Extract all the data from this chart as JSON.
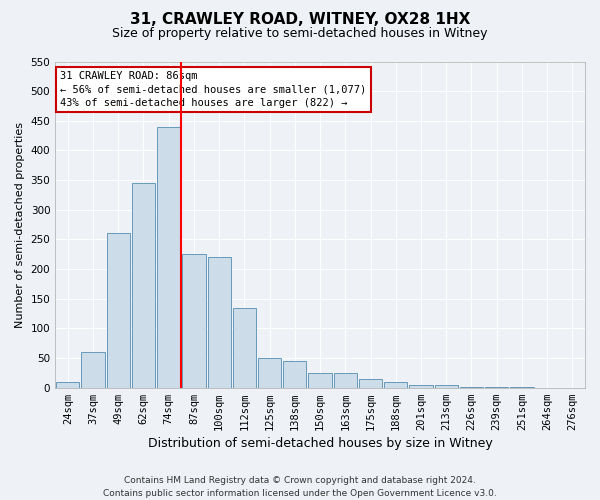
{
  "title": "31, CRAWLEY ROAD, WITNEY, OX28 1HX",
  "subtitle": "Size of property relative to semi-detached houses in Witney",
  "xlabel": "Distribution of semi-detached houses by size in Witney",
  "ylabel": "Number of semi-detached properties",
  "categories": [
    "24sqm",
    "37sqm",
    "49sqm",
    "62sqm",
    "74sqm",
    "87sqm",
    "100sqm",
    "112sqm",
    "125sqm",
    "138sqm",
    "150sqm",
    "163sqm",
    "175sqm",
    "188sqm",
    "201sqm",
    "213sqm",
    "226sqm",
    "239sqm",
    "251sqm",
    "264sqm",
    "276sqm"
  ],
  "values": [
    10,
    60,
    260,
    345,
    440,
    225,
    220,
    135,
    50,
    45,
    25,
    25,
    15,
    10,
    5,
    5,
    2,
    1,
    1,
    0,
    0
  ],
  "bar_color": "#ccdce8",
  "bar_edge_color": "#6699bb",
  "red_line_index": 5,
  "annotation_text": "31 CRAWLEY ROAD: 86sqm\n← 56% of semi-detached houses are smaller (1,077)\n43% of semi-detached houses are larger (822) →",
  "annotation_box_color": "#ffffff",
  "annotation_box_edge": "#cc0000",
  "ylim": [
    0,
    550
  ],
  "yticks": [
    0,
    50,
    100,
    150,
    200,
    250,
    300,
    350,
    400,
    450,
    500,
    550
  ],
  "footer_line1": "Contains HM Land Registry data © Crown copyright and database right 2024.",
  "footer_line2": "Contains public sector information licensed under the Open Government Licence v3.0.",
  "title_fontsize": 11,
  "subtitle_fontsize": 9,
  "xlabel_fontsize": 9,
  "ylabel_fontsize": 8,
  "tick_fontsize": 7.5,
  "footer_fontsize": 6.5,
  "plot_bg_color": "#eef2f7",
  "fig_bg_color": "#eef2f7",
  "grid_color": "#ffffff",
  "spine_color": "#aaaaaa"
}
